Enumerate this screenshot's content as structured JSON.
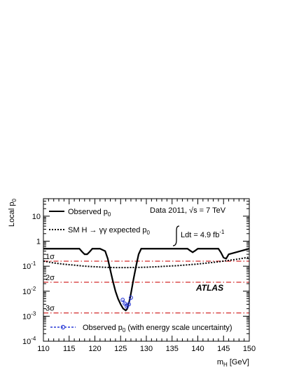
{
  "chart_data": {
    "type": "line",
    "title": "",
    "xlabel_main": "m",
    "xlabel_sub": "H",
    "xlabel_unit": "[GeV]",
    "ylabel_main": "Local p",
    "ylabel_sub": "0",
    "xlim": [
      110,
      150
    ],
    "ylim": [
      0.0001,
      50
    ],
    "yscale": "log",
    "x_ticks": [
      "110",
      "115",
      "120",
      "125",
      "130",
      "135",
      "140",
      "145",
      "150"
    ],
    "y_ticks": [
      {
        "base": "10",
        "exp": "-4",
        "value": 0.0001
      },
      {
        "base": "10",
        "exp": "-3",
        "value": 0.001
      },
      {
        "base": "10",
        "exp": "-2",
        "value": 0.01
      },
      {
        "base": "10",
        "exp": "-1",
        "value": 0.1
      },
      {
        "base": "1",
        "exp": "",
        "value": 1
      },
      {
        "base": "10",
        "exp": "",
        "value": 10
      }
    ],
    "sigma_lines": [
      {
        "label": "1σ",
        "p": 0.159
      },
      {
        "label": "2σ",
        "p": 0.0228
      },
      {
        "label": "3σ",
        "p": 0.00135
      }
    ],
    "legend": {
      "observed": {
        "main": "Observed p",
        "sub": "0"
      },
      "expected": {
        "main": "SM H → γγ expected p",
        "sub": "0"
      },
      "escale": {
        "main": "Observed p",
        "sub": "0",
        "rest": " (with energy scale uncertainty)"
      }
    },
    "annotations": {
      "data": "Data 2011, √s = 7 TeV",
      "lumi_prefix": "Ldt = 4.9 fb",
      "lumi_exp": "-1",
      "experiment": "ATLAS"
    },
    "series": [
      {
        "style": "solid",
        "color": "#000000",
        "x": [
          110,
          117,
          117.5,
          118,
          118.5,
          119,
          119.5,
          121,
          122,
          122.5,
          123,
          123.5,
          124,
          124.5,
          125,
          125.5,
          126,
          126.3,
          126.7,
          127,
          127.5,
          128,
          128.5,
          129,
          138,
          138.5,
          139,
          139.5,
          140,
          144,
          144.5,
          145,
          145.5,
          146,
          150
        ],
        "y": [
          0.5,
          0.5,
          0.38,
          0.3,
          0.3,
          0.38,
          0.5,
          0.5,
          0.4,
          0.2,
          0.07,
          0.025,
          0.01,
          0.005,
          0.003,
          0.002,
          0.0017,
          0.002,
          0.004,
          0.008,
          0.03,
          0.1,
          0.3,
          0.5,
          0.5,
          0.42,
          0.36,
          0.42,
          0.5,
          0.5,
          0.35,
          0.22,
          0.2,
          0.3,
          0.5
        ]
      },
      {
        "style": "dotted",
        "color": "#000000",
        "x": [
          110,
          112,
          114,
          116,
          118,
          120,
          122,
          124,
          126,
          128,
          130,
          132,
          134,
          136,
          138,
          140,
          142,
          144,
          146,
          148,
          150
        ],
        "y": [
          0.16,
          0.135,
          0.12,
          0.11,
          0.1,
          0.095,
          0.09,
          0.088,
          0.088,
          0.089,
          0.091,
          0.095,
          0.1,
          0.105,
          0.113,
          0.122,
          0.135,
          0.15,
          0.17,
          0.195,
          0.23
        ]
      },
      {
        "style": "dashed-markers",
        "color": "#2a3ad6",
        "x": [
          125.4,
          125.8,
          126.2,
          126.6,
          127.0
        ],
        "y": [
          0.0045,
          0.0032,
          0.0024,
          0.003,
          0.0055
        ]
      }
    ],
    "colors": {
      "sigma": "#d32a2a",
      "escale": "#2a3ad6"
    }
  }
}
